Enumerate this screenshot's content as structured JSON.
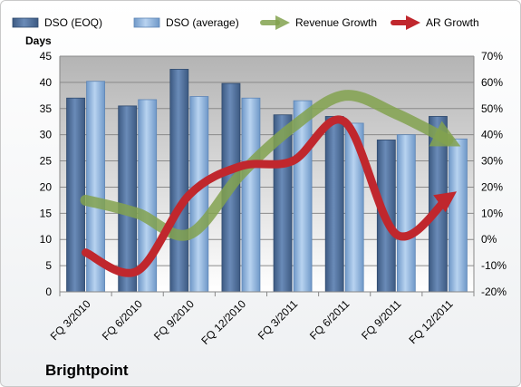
{
  "chart_data": {
    "type": "bar",
    "title": "Brightpoint",
    "ylabel": "Days",
    "categories": [
      "FQ 3/2010",
      "FQ 6/2010",
      "FQ 9/2010",
      "FQ 12/2010",
      "FQ 3/2011",
      "FQ 6/2011",
      "FQ 9/2011",
      "FQ 12/2011"
    ],
    "series": [
      {
        "name": "DSO (EOQ)",
        "kind": "bar",
        "axis": "left",
        "color": "#4f6d96",
        "values": [
          37,
          35.5,
          42.5,
          39.8,
          33.8,
          33.5,
          29,
          33.5
        ]
      },
      {
        "name": "DSO (average)",
        "kind": "bar",
        "axis": "left",
        "color": "#8fb3dd",
        "values": [
          40.2,
          36.7,
          37.3,
          37,
          36.5,
          32.2,
          30,
          29.2
        ]
      },
      {
        "name": "Revenue Growth",
        "kind": "arrow-line",
        "axis": "right",
        "color": "#82a24f",
        "values": [
          15,
          10,
          2,
          25,
          43,
          55,
          48,
          38
        ]
      },
      {
        "name": "AR Growth",
        "kind": "arrow-line",
        "axis": "right",
        "color": "#c0272d",
        "values": [
          -5,
          -12,
          17,
          28,
          30,
          45,
          2,
          16
        ]
      }
    ],
    "ylim": [
      0,
      45
    ],
    "y_ticks": [
      "0",
      "5",
      "10",
      "15",
      "20",
      "25",
      "30",
      "35",
      "40",
      "45"
    ],
    "y2lim": [
      -20,
      70
    ],
    "y2_ticks": [
      "-20%",
      "-10%",
      "0%",
      "10%",
      "20%",
      "30%",
      "40%",
      "50%",
      "60%",
      "70%"
    ],
    "grid": true,
    "legend_position": "top"
  }
}
